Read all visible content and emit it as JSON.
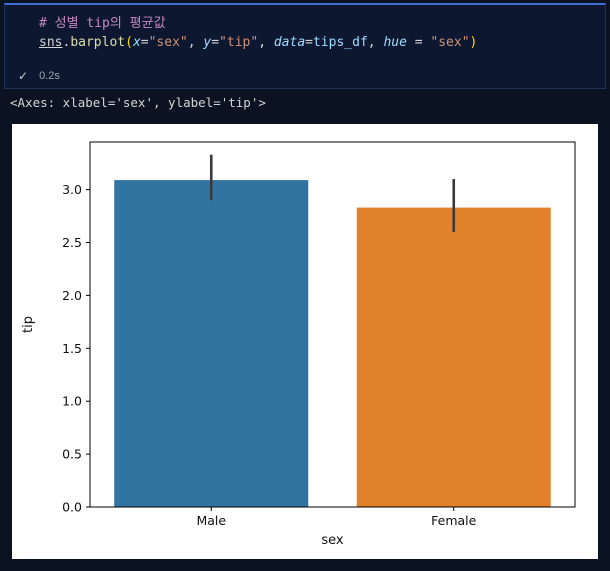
{
  "cell": {
    "code_lines": [
      {
        "tokens": [
          {
            "text": "# 성별 tip의 평균값",
            "style": "comment"
          }
        ]
      },
      {
        "tokens": [
          {
            "text": "sns",
            "style": "module"
          },
          {
            "text": ".",
            "style": "plain"
          },
          {
            "text": "barplot",
            "style": "function"
          },
          {
            "text": "(",
            "style": "bracket"
          },
          {
            "text": "x",
            "style": "param"
          },
          {
            "text": "=",
            "style": "plain"
          },
          {
            "text": "\"sex\"",
            "style": "string"
          },
          {
            "text": ", ",
            "style": "plain"
          },
          {
            "text": "y",
            "style": "param"
          },
          {
            "text": "=",
            "style": "plain"
          },
          {
            "text": "\"tip\"",
            "style": "string"
          },
          {
            "text": ", ",
            "style": "plain"
          },
          {
            "text": "data",
            "style": "param"
          },
          {
            "text": "=",
            "style": "plain"
          },
          {
            "text": "tips_df",
            "style": "variable"
          },
          {
            "text": ", ",
            "style": "plain"
          },
          {
            "text": "hue",
            "style": "param"
          },
          {
            "text": " = ",
            "style": "plain"
          },
          {
            "text": "\"sex\"",
            "style": "string"
          },
          {
            "text": ")",
            "style": "bracket"
          }
        ]
      }
    ],
    "status": {
      "check": "✓",
      "duration": "0.2s"
    }
  },
  "output": {
    "text": "<Axes: xlabel='sex', ylabel='tip'>"
  },
  "chart_data": {
    "type": "bar",
    "title": "",
    "categories": [
      "Male",
      "Female"
    ],
    "values": [
      3.09,
      2.83
    ],
    "error_low": [
      2.9,
      2.6
    ],
    "error_high": [
      3.33,
      3.1
    ],
    "bar_colors": [
      "#3274a1",
      "#e1812c"
    ],
    "error_color": "#3a3a3a",
    "xlabel": "sex",
    "ylabel": "tip",
    "ylim": [
      0,
      3.45
    ],
    "yticks": [
      0.0,
      0.5,
      1.0,
      1.5,
      2.0,
      2.5,
      3.0
    ],
    "background": "#ffffff",
    "grid": false,
    "legend": "none"
  }
}
